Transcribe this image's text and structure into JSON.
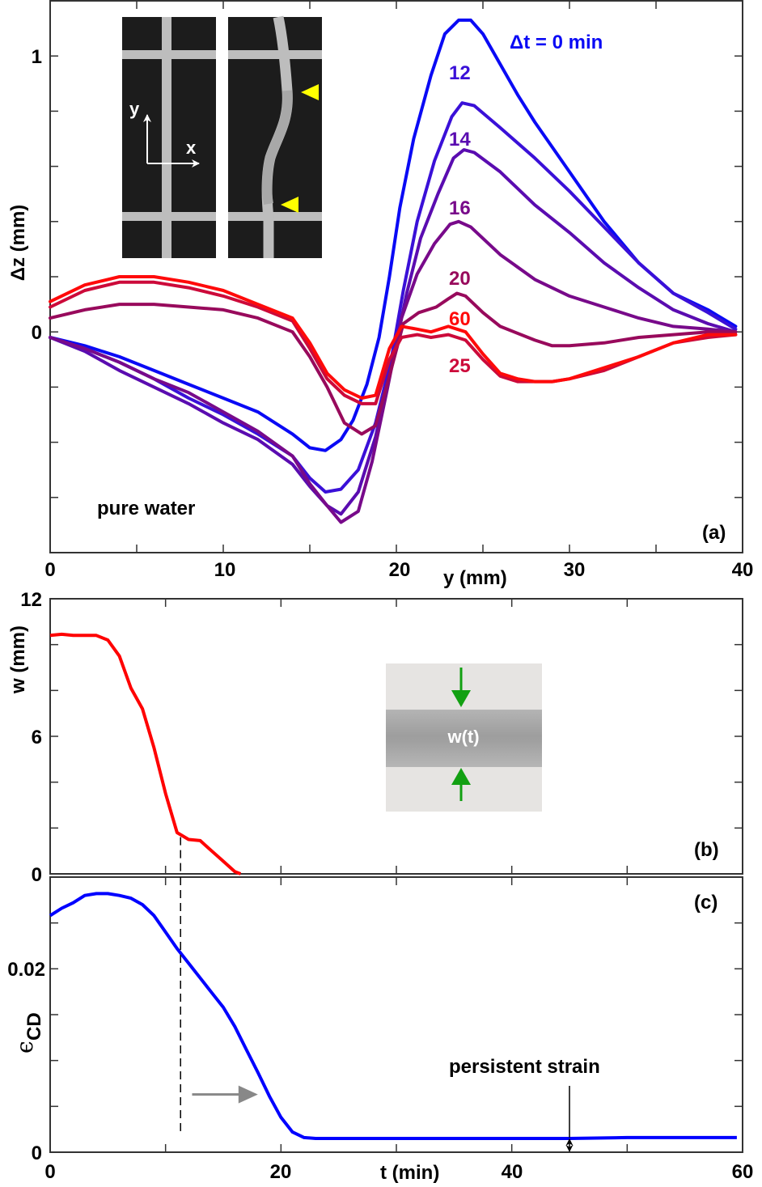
{
  "chart_data": [
    {
      "panel": "(a)",
      "type": "line",
      "xlabel": "y (mm)",
      "ylabel": "Δz (mm)",
      "xlim": [
        0,
        40
      ],
      "ylim": [
        -0.8,
        1.2
      ],
      "xticks": [
        0,
        10,
        20,
        30,
        40
      ],
      "yticks_labeled": [
        0,
        1
      ],
      "yticks_minor": [
        -0.6,
        -0.4,
        -0.2,
        0.2,
        0.4,
        0.6,
        0.8
      ],
      "xticks_minor": [
        5,
        15,
        25,
        35
      ],
      "annotation": "pure water",
      "series": [
        {
          "name": "Δt = 0 min",
          "label": "Δt = 0 min",
          "color": "#0a0af5",
          "x": [
            0,
            2,
            4,
            6,
            8,
            10,
            12,
            14,
            15,
            15.9,
            16.8,
            17.5,
            18.3,
            19,
            19.6,
            20.2,
            21,
            22,
            22.8,
            23.6,
            24.3,
            25,
            26,
            27,
            28,
            30,
            32,
            34,
            36,
            38,
            39.6
          ],
          "y": [
            -0.02,
            -0.05,
            -0.09,
            -0.14,
            -0.19,
            -0.24,
            -0.29,
            -0.37,
            -0.42,
            -0.43,
            -0.39,
            -0.32,
            -0.19,
            -0.02,
            0.2,
            0.45,
            0.7,
            0.93,
            1.08,
            1.13,
            1.13,
            1.08,
            0.97,
            0.86,
            0.76,
            0.58,
            0.4,
            0.25,
            0.14,
            0.08,
            0.02
          ]
        },
        {
          "name": "12",
          "label": "12",
          "color": "#3a10d8",
          "x": [
            0,
            2,
            4,
            6,
            8,
            10,
            12,
            14,
            15,
            15.9,
            16.8,
            17.8,
            18.8,
            19.7,
            20.4,
            21.2,
            22.2,
            23.2,
            23.8,
            24.5,
            26,
            28,
            30,
            32,
            34,
            36,
            38,
            39.6
          ],
          "y": [
            -0.02,
            -0.06,
            -0.11,
            -0.17,
            -0.24,
            -0.3,
            -0.37,
            -0.45,
            -0.53,
            -0.58,
            -0.57,
            -0.5,
            -0.33,
            -0.1,
            0.15,
            0.4,
            0.62,
            0.78,
            0.83,
            0.82,
            0.74,
            0.63,
            0.51,
            0.38,
            0.25,
            0.14,
            0.07,
            0.01
          ]
        },
        {
          "name": "14",
          "label": "14",
          "color": "#5a0cb0",
          "x": [
            0,
            2,
            4,
            6,
            8,
            10,
            12,
            14,
            15,
            16,
            16.8,
            17.8,
            18.8,
            19.8,
            20.6,
            21.4,
            22.4,
            23.3,
            23.9,
            24.5,
            26,
            28,
            30,
            32,
            34,
            36,
            38,
            39.6
          ],
          "y": [
            -0.02,
            -0.07,
            -0.14,
            -0.2,
            -0.26,
            -0.33,
            -0.39,
            -0.48,
            -0.56,
            -0.63,
            -0.66,
            -0.58,
            -0.38,
            -0.1,
            0.14,
            0.34,
            0.5,
            0.63,
            0.66,
            0.65,
            0.58,
            0.46,
            0.36,
            0.25,
            0.16,
            0.08,
            0.03,
            0.0
          ]
        },
        {
          "name": "16",
          "label": "16",
          "color": "#780a8a",
          "x": [
            0,
            2,
            4,
            6,
            8,
            10,
            12,
            14,
            15,
            16,
            16.8,
            17.8,
            18.6,
            19.5,
            20.3,
            21.2,
            22.2,
            23.1,
            23.6,
            24.3,
            26,
            28,
            30,
            32,
            34,
            36,
            38,
            39.6
          ],
          "y": [
            -0.02,
            -0.06,
            -0.11,
            -0.17,
            -0.22,
            -0.29,
            -0.36,
            -0.45,
            -0.55,
            -0.63,
            -0.69,
            -0.65,
            -0.47,
            -0.2,
            0.05,
            0.21,
            0.32,
            0.39,
            0.4,
            0.38,
            0.28,
            0.19,
            0.13,
            0.09,
            0.05,
            0.02,
            0.01,
            0.0
          ]
        },
        {
          "name": "20",
          "label": "20",
          "color": "#980a5c",
          "x": [
            0,
            2,
            4,
            6,
            8,
            10,
            12,
            14,
            15,
            16,
            17,
            18,
            18.8,
            19.6,
            20.4,
            21.3,
            22.3,
            23,
            23.5,
            24,
            25,
            26,
            28,
            29,
            30,
            32,
            34,
            36,
            38,
            39.6
          ],
          "y": [
            0.05,
            0.08,
            0.1,
            0.1,
            0.09,
            0.08,
            0.05,
            0.0,
            -0.09,
            -0.2,
            -0.33,
            -0.37,
            -0.34,
            -0.16,
            0.03,
            0.07,
            0.09,
            0.12,
            0.14,
            0.13,
            0.07,
            0.02,
            -0.03,
            -0.05,
            -0.05,
            -0.04,
            -0.02,
            -0.01,
            0.0,
            0.0
          ]
        },
        {
          "name": "25",
          "label": "25",
          "color": "#cc0a3a",
          "x": [
            0,
            2,
            4,
            6,
            8,
            10,
            12,
            14,
            15,
            16,
            17,
            18,
            18.8,
            19.6,
            20.3,
            21.2,
            22,
            23,
            24,
            25,
            26,
            27,
            28,
            29,
            30,
            32,
            34,
            36,
            38,
            39.6
          ],
          "y": [
            0.09,
            0.15,
            0.18,
            0.18,
            0.16,
            0.13,
            0.09,
            0.04,
            -0.06,
            -0.17,
            -0.23,
            -0.26,
            -0.26,
            -0.1,
            -0.02,
            -0.01,
            -0.02,
            -0.01,
            -0.03,
            -0.1,
            -0.16,
            -0.18,
            -0.18,
            -0.18,
            -0.17,
            -0.14,
            -0.09,
            -0.04,
            -0.02,
            -0.01
          ]
        },
        {
          "name": "60",
          "label": "60",
          "color": "#ff0a0a",
          "x": [
            0,
            2,
            4,
            6,
            8,
            10,
            12,
            14,
            15,
            16,
            17,
            18,
            18.8,
            19.6,
            20.3,
            21.2,
            22,
            23,
            24,
            25,
            26,
            27,
            28,
            29,
            30,
            32,
            34,
            36,
            38,
            39.6
          ],
          "y": [
            0.11,
            0.17,
            0.2,
            0.2,
            0.18,
            0.15,
            0.1,
            0.05,
            -0.04,
            -0.15,
            -0.21,
            -0.24,
            -0.23,
            -0.06,
            0.02,
            0.01,
            0.0,
            0.02,
            0.0,
            -0.08,
            -0.15,
            -0.17,
            -0.18,
            -0.18,
            -0.17,
            -0.13,
            -0.09,
            -0.04,
            -0.01,
            -0.01
          ]
        }
      ]
    },
    {
      "panel": "(b)",
      "type": "line",
      "xlabel": "",
      "ylabel": "w (mm)",
      "xlim": [
        0,
        60
      ],
      "ylim": [
        0,
        12
      ],
      "yticks_labeled": [
        0,
        6,
        12
      ],
      "yticks_minor": [
        2,
        4,
        8,
        10
      ],
      "xticks_minor": [
        10,
        20,
        30,
        40,
        50
      ],
      "inset_label": "w(t)",
      "series": [
        {
          "name": "w",
          "color": "#ff0000",
          "t": [
            0,
            1,
            2,
            3,
            4,
            5,
            6,
            7,
            8,
            9,
            10,
            11,
            12,
            13,
            14,
            15,
            16,
            16.5
          ],
          "values": [
            10.4,
            10.45,
            10.4,
            10.4,
            10.4,
            10.2,
            9.5,
            8.1,
            7.2,
            5.5,
            3.5,
            1.8,
            1.5,
            1.45,
            1.0,
            0.55,
            0.1,
            0.0
          ]
        }
      ],
      "vline_t": 11.3
    },
    {
      "panel": "(c)",
      "type": "line",
      "xlabel": "t (min)",
      "ylabel": "ϵ_CD",
      "xlim": [
        0,
        60
      ],
      "ylim": [
        0,
        0.03
      ],
      "xticks": [
        0,
        20,
        40,
        60
      ],
      "xticks_minor": [
        10,
        30,
        50
      ],
      "yticks_labeled": [
        0,
        0.02
      ],
      "yticks_minor": [
        0.005,
        0.01,
        0.015,
        0.025
      ],
      "annotation": "persistent strain",
      "series": [
        {
          "name": "strain",
          "color": "#0000ff",
          "t": [
            0,
            1,
            2,
            3,
            4,
            5,
            6,
            7,
            8,
            9,
            10,
            11,
            12,
            13,
            14,
            15,
            16,
            17,
            18,
            19,
            20,
            21,
            22,
            23,
            25,
            30,
            35,
            40,
            45,
            50,
            55,
            59.5
          ],
          "values": [
            0.0258,
            0.0266,
            0.0272,
            0.028,
            0.0282,
            0.0282,
            0.028,
            0.0277,
            0.027,
            0.0258,
            0.024,
            0.0222,
            0.0206,
            0.019,
            0.0174,
            0.0158,
            0.0137,
            0.0112,
            0.0087,
            0.0061,
            0.0038,
            0.0022,
            0.0016,
            0.0015,
            0.0015,
            0.0015,
            0.0015,
            0.0015,
            0.0015,
            0.0016,
            0.0016,
            0.0016
          ]
        }
      ],
      "vline_t": 11.3,
      "persistent_strain_t": 45,
      "grey_arrow": {
        "from_t": 12.3,
        "to_t": 18,
        "at_value": 0.0063
      }
    }
  ],
  "labels": {
    "a_xlabel": "y (mm)",
    "a_ylabel": "Δz (mm)",
    "a_panel": "(a)",
    "a_note": "pure water",
    "a_xticks": [
      "0",
      "10",
      "20",
      "30",
      "40"
    ],
    "a_yticks": [
      "1",
      "0"
    ],
    "b_ylabel": "w (mm)",
    "b_panel": "(b)",
    "b_yticks": [
      "12",
      "6",
      "0"
    ],
    "b_inset": "w(t)",
    "inset_axis_x": "x",
    "inset_axis_y": "y",
    "c_xlabel": "t (min)",
    "c_ylabel_main": "ϵ",
    "c_ylabel_sub": "CD",
    "c_panel": "(c)",
    "c_xticks": [
      "0",
      "20",
      "40",
      "60"
    ],
    "c_yticks": [
      "0.02",
      "0"
    ],
    "c_note": "persistent strain"
  }
}
